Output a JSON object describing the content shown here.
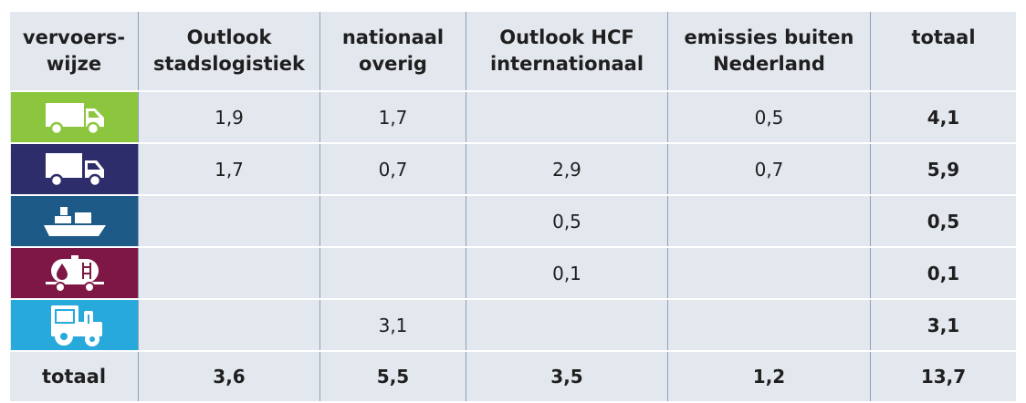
{
  "header": {
    "col1": [
      "vervoers-",
      "wijze"
    ],
    "col2": [
      "Outlook",
      "stadslogistiek"
    ],
    "col3": [
      "nationaal",
      "overig"
    ],
    "col4": [
      "Outlook HCF",
      "internationaal"
    ],
    "col5": [
      "emissies buiten",
      "Nederland"
    ],
    "col6": [
      "totaal"
    ]
  },
  "rows": [
    {
      "icon": "van-icon",
      "color": "#8cc63f",
      "v1": "1,9",
      "v2": "1,7",
      "v3": "",
      "v4": "0,5",
      "total": "4,1"
    },
    {
      "icon": "truck-icon",
      "color": "#2e2d6b",
      "v1": "1,7",
      "v2": "0,7",
      "v3": "2,9",
      "v4": "0,7",
      "total": "5,9"
    },
    {
      "icon": "ship-icon",
      "color": "#1d5a87",
      "v1": "",
      "v2": "",
      "v3": "0,5",
      "v4": "",
      "total": "0,5"
    },
    {
      "icon": "rail-tank-wagon-icon",
      "color": "#7e1746",
      "v1": "",
      "v2": "",
      "v3": "0,1",
      "v4": "",
      "total": "0,1"
    },
    {
      "icon": "tractor-icon",
      "color": "#28a9dc",
      "v1": "",
      "v2": "3,1",
      "v3": "",
      "v4": "",
      "total": "3,1"
    }
  ],
  "footer": {
    "label": "totaal",
    "v1": "3,6",
    "v2": "5,5",
    "v3": "3,5",
    "v4": "1,2",
    "total": "13,7"
  }
}
